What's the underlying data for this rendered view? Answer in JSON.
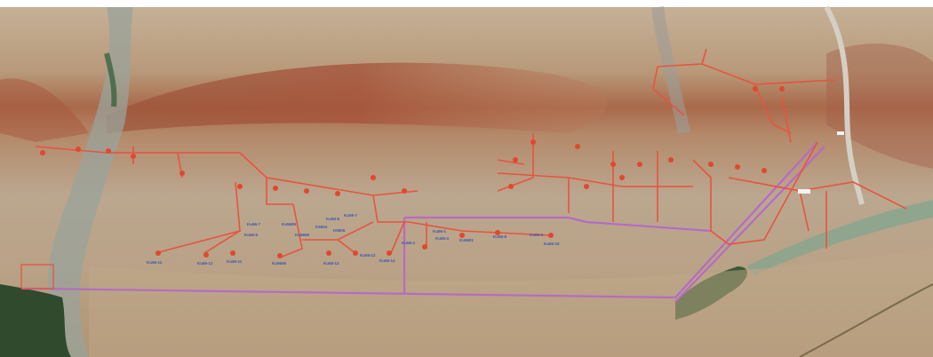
{
  "map": {
    "colors": {
      "pipeline": "#e8533f",
      "trunk_line": "#b56cc4",
      "well_marker": "#e0482f",
      "label_text": "#3b56b0"
    },
    "well_labels": [
      "Ku56-11",
      "Ku56-12",
      "Ku56-11",
      "Ku5606",
      "Ku56-7",
      "Ku56-5",
      "Ku5609",
      "Ku5608",
      "Ku56-6",
      "Ku56-7",
      "K5604",
      "K5605",
      "Ku55-13",
      "Ku56-2",
      "Ku55-12",
      "Ku56-14",
      "Ku55-3",
      "Ku56-1",
      "Ku5601",
      "Ku56-3",
      "Ku56-8",
      "Ku55-10"
    ]
  }
}
